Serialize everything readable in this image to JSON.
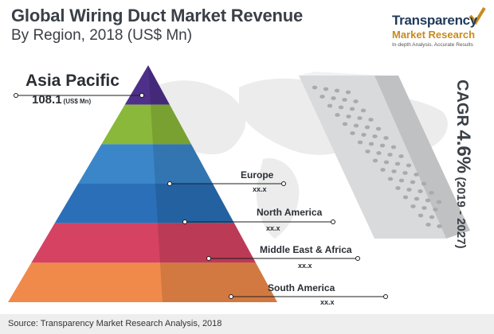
{
  "title": {
    "line1": "Global Wiring Duct Market Revenue",
    "line2": "By Region, 2018 (US$ Mn)"
  },
  "brand": {
    "name_line1": "Transparency",
    "name_line2": "Market Research",
    "tagline": "In-depth Analysis. Accurate Results"
  },
  "cagr": {
    "label": "CAGR",
    "value": "4.6%",
    "period": "(2019 - 2027)"
  },
  "source": "Source: Transparency Market Research Analysis, 2018",
  "colors": {
    "asia_pacific": "#4e2f8a",
    "green": "#8ab83a",
    "europe": "#3a86c9",
    "north_america": "#2a6fb8",
    "middle_east_africa": "#d54262",
    "south_america": "#f08a4b"
  },
  "chart_data": {
    "type": "pyramid",
    "title": "Global Wiring Duct Market Revenue By Region, 2018 (US$ Mn)",
    "unit": "US$ Mn",
    "segments": [
      {
        "region": "Asia Pacific",
        "value_label": "108.1",
        "unit_label": "(US$ Mn)",
        "color": "#4e2f8a"
      },
      {
        "region": "",
        "value_label": "",
        "unit_label": "",
        "color": "#8ab83a"
      },
      {
        "region": "Europe",
        "value_label": "xx.x",
        "unit_label": "",
        "color": "#3a86c9"
      },
      {
        "region": "North America",
        "value_label": "xx.x",
        "unit_label": "",
        "color": "#2a6fb8"
      },
      {
        "region": "Middle East & Africa",
        "value_label": "xx.x",
        "unit_label": "",
        "color": "#d54262"
      },
      {
        "region": "South America",
        "value_label": "xx.x",
        "unit_label": "",
        "color": "#f08a4b"
      }
    ]
  }
}
